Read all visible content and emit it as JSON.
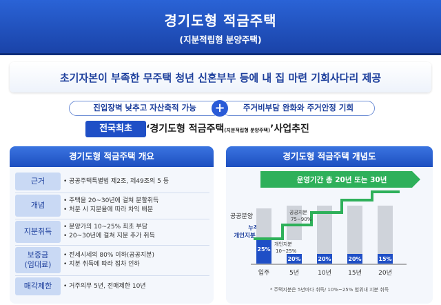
{
  "header": {
    "title": "경기도형 적금주택",
    "subtitle": "(지분적립형 분양주택)"
  },
  "headline": "초기자본이 부족한 무주택 청년 신혼부부 등에 내 집 마련 기회사다리 제공",
  "pills": {
    "left": "진입장벽 낮추고 자산축적 가능",
    "plus": "+",
    "right": "주거비부담 완화와 주거안정 기회"
  },
  "promo": {
    "badge": "전국최초",
    "prefix": "‘경기도형 적금주택",
    "small": "(지분적립형 분양주택)",
    "suffix": "’사업추진"
  },
  "overview": {
    "title": "경기도형 적금주택 개요",
    "rows": [
      {
        "label": "근거",
        "lines": [
          "• 공공주택특별법 제2조, 제49조의 5 등"
        ]
      },
      {
        "label": "개념",
        "lines": [
          "• 주택을 20~30년에 걸쳐 분할취득",
          "• 처분 시 지분율에 따라 차익 배분"
        ]
      },
      {
        "label": "지분취득",
        "lines": [
          "• 분양가의 10~25% 최초 부담",
          "• 20~30년에 걸쳐 지분 추가 취득"
        ]
      },
      {
        "label": "보증금\n(임대료)",
        "lines": [
          "• 전세시세의 80% 이하(공공지분)",
          "• 지분 취득에 따라 점차 인하"
        ]
      },
      {
        "label": "매각제한",
        "lines": [
          "• 거주의무 5년, 전매제한 10년"
        ]
      }
    ]
  },
  "concept": {
    "title": "경기도형 적금주택 개념도",
    "arrow_label": "운영기간 총 20년 또는 30년",
    "public_label": "공공분양",
    "cumulative_label": "누적\n개인지분",
    "public_share_label": "공공지분\n75~90%",
    "personal_share_label": "개인지분\n10~25%",
    "x_labels": [
      "입주",
      "5년",
      "10년",
      "15년",
      "20년"
    ],
    "stair_values": [
      "25%",
      "20%",
      "20%",
      "20%",
      "15%"
    ],
    "footnote": "* 주택지분은 5년마다 취득/ 10%~25% 범위내 지분 취득"
  },
  "colors": {
    "banner": "#1f4fc6",
    "accent": "#1d3f9c",
    "green": "#2eb05a",
    "public_bar": "#c8c8c8",
    "personal_bar": "#1f4fc6"
  }
}
